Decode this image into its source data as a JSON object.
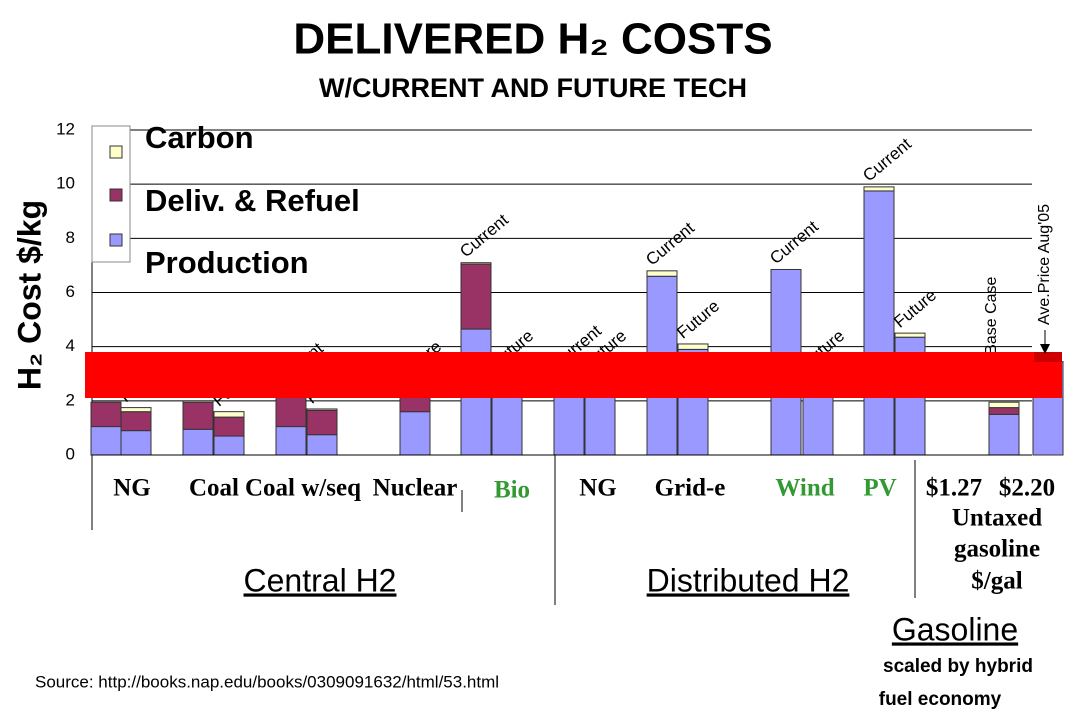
{
  "chart_data": {
    "type": "bar",
    "stacked": true,
    "title": "DELIVERED H₂ COSTS",
    "subtitle": "W/CURRENT AND FUTURE TECH",
    "y_label": "H₂ Cost $/kg",
    "categories": [
      "Current",
      "Future",
      "Current",
      "Future",
      "Current",
      "Future",
      "Future",
      "Current",
      "Future",
      "Current",
      "Future",
      "Current",
      "Future",
      "Current",
      "Future",
      "Current",
      "Future",
      "NAS Base Case",
      "Ave.Price Aug'05"
    ],
    "series": [
      {
        "name": "Production",
        "color": "#9999ff",
        "values": [
          1.05,
          0.9,
          0.95,
          0.7,
          1.05,
          0.75,
          1.6,
          4.65,
          3.0,
          3.0,
          3.0,
          6.6,
          3.9,
          6.85,
          3.0,
          9.75,
          4.35,
          1.5,
          3.45
        ]
      },
      {
        "name": "Deliv. & Refuel",
        "color": "#993366",
        "values": [
          0.9,
          0.7,
          1.0,
          0.7,
          1.3,
          0.9,
          1.0,
          2.4,
          null,
          null,
          null,
          null,
          null,
          null,
          null,
          null,
          null,
          0.25,
          null
        ]
      },
      {
        "name": "Carbon",
        "color": "#ffffcc",
        "values": [
          null,
          0.15,
          0.05,
          0.2,
          null,
          0.05,
          null,
          0.05,
          null,
          null,
          null,
          0.2,
          0.2,
          null,
          null,
          0.15,
          0.15,
          0.2,
          null
        ]
      }
    ],
    "ylim": [
      0,
      12
    ],
    "yticks": [
      0,
      2,
      4,
      6,
      8,
      10,
      12
    ],
    "grid": true,
    "groups": [
      "NG",
      "Coal",
      "Coal w/seq",
      "Nuclear",
      "Bio",
      "NG",
      "Grid-e",
      "Wind",
      "PV",
      "$1.27",
      "$2.20"
    ],
    "gasoline_unit": [
      "Untaxed",
      "gasoline",
      "$/gal"
    ],
    "sections": [
      "Central H2",
      "Distributed H2",
      "Gasoline"
    ],
    "gasoline_note": [
      "scaled by hybrid",
      "fuel economy"
    ],
    "source": "Source: http://books.nap.edu/books/0309091632/html/53.html"
  }
}
